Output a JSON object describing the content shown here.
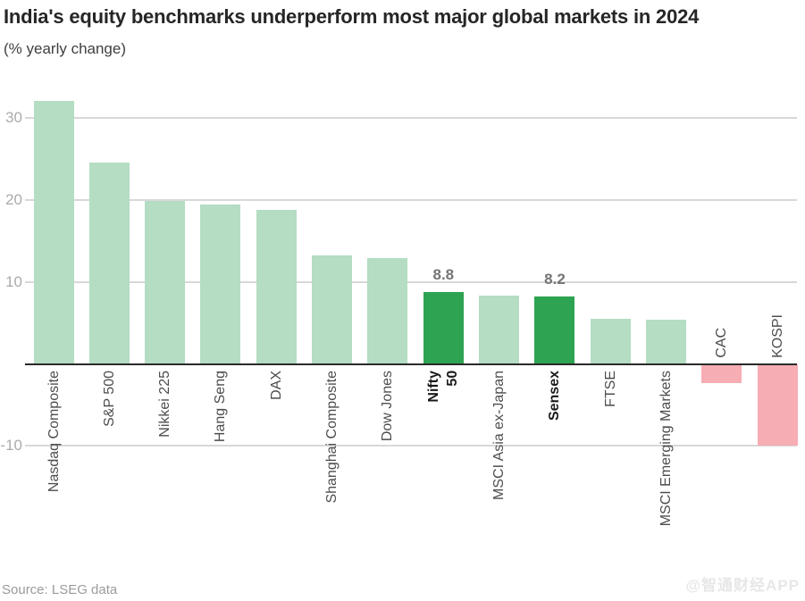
{
  "page": {
    "title": "India's equity benchmarks underperform most major global markets in 2024",
    "subtitle": "(% yearly change)",
    "source": "Source: LSEG data",
    "watermark": "@智通财经APP"
  },
  "colors": {
    "bar_positive": "#b4ddc3",
    "bar_highlight": "#2ea352",
    "bar_negative": "#f6adb3",
    "gridline": "#d8d8d8",
    "axis_line": "#2a2a2a",
    "tick_label": "#ababab",
    "category_label": "#4d4d4d",
    "category_label_emphasis": "#1a1a1a",
    "value_label": "#757575"
  },
  "chart_data": {
    "type": "bar",
    "title": "India's equity benchmarks underperform most major global markets in 2024",
    "subtitle": "(% yearly change)",
    "xlabel": "",
    "ylabel": "% yearly change",
    "ylim": [
      -12,
      34
    ],
    "yticks": [
      30,
      20,
      10,
      -10
    ],
    "grid": "horizontal gridlines at yticks; zero baseline drawn as dark axis",
    "legend_position": "none",
    "categories": [
      "Nasdaq Composite",
      "S&P 500",
      "Nikkei 225",
      "Hang Seng",
      "DAX",
      "Shanghai Composite",
      "Dow Jones",
      "Nifty 50",
      "MSCI Asia ex-Japan",
      "Sensex",
      "FTSE",
      "MSCI Emerging Markets",
      "CAC",
      "KOSPI"
    ],
    "values": [
      32.1,
      24.6,
      19.9,
      19.5,
      18.8,
      13.2,
      12.9,
      8.8,
      8.3,
      8.2,
      5.5,
      5.4,
      -2.3,
      -10.0
    ],
    "highlighted_categories": [
      "Nifty 50",
      "Sensex"
    ],
    "annotations": [
      {
        "category": "Nifty 50",
        "text": "8.8"
      },
      {
        "category": "Sensex",
        "text": "8.2"
      }
    ],
    "two_line_labels": {
      "Nifty 50": "Nifty\n50"
    }
  }
}
